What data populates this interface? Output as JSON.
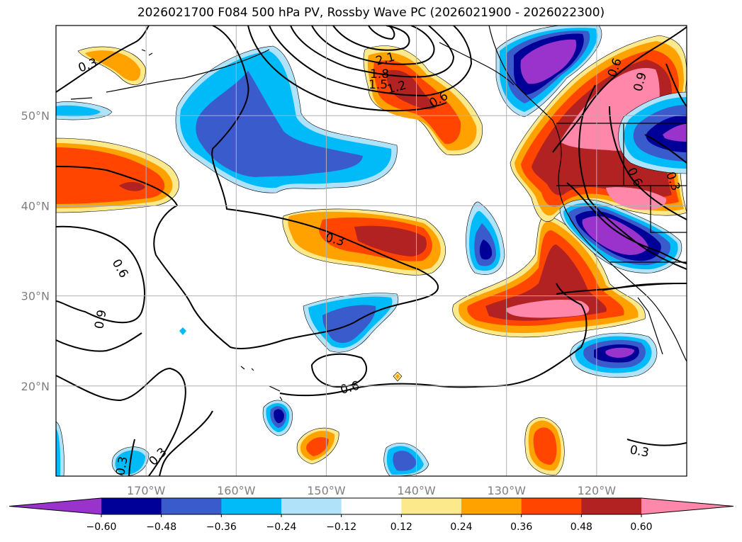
{
  "title": "2026021700 F084 500 hPa PV, Rossby Wave PC (2026021900 - 2026022300)",
  "map": {
    "projection": "PlateCarree",
    "lon_range": [
      -180,
      -110
    ],
    "lat_range": [
      10,
      60
    ],
    "grid": true,
    "lat_ticks": [
      {
        "value": 50,
        "label": "50°N"
      },
      {
        "value": 40,
        "label": "40°N"
      },
      {
        "value": 30,
        "label": "30°N"
      },
      {
        "value": 20,
        "label": "20°N"
      }
    ],
    "lon_ticks": [
      {
        "value": -170,
        "label": "170°W"
      },
      {
        "value": -160,
        "label": "160°W"
      },
      {
        "value": -150,
        "label": "150°W"
      },
      {
        "value": -140,
        "label": "140°W"
      },
      {
        "value": -130,
        "label": "130°W"
      },
      {
        "value": -120,
        "label": "120°W"
      }
    ],
    "contour_labels": [
      "0.3",
      "0.6",
      "0.9",
      "1.2",
      "1.5",
      "1.8",
      "2.1"
    ]
  },
  "colorbar": {
    "levels": [
      -0.6,
      -0.48,
      -0.36,
      -0.24,
      -0.12,
      0.12,
      0.24,
      0.36,
      0.48,
      0.6
    ],
    "tick_labels": [
      "−0.60",
      "−0.48",
      "−0.36",
      "−0.24",
      "−0.12",
      "0.12",
      "0.24",
      "0.36",
      "0.48",
      "0.60"
    ],
    "colors": {
      "lt_-0.60": "#9933cc",
      "-0.60_-0.48": "#000099",
      "-0.48_-0.36": "#3a5bcc",
      "-0.36_-0.24": "#00bbf8",
      "-0.24_-0.12": "#b0e2fa",
      "-0.12_0.12": "#ffffff",
      "0.12_0.24": "#fce98c",
      "0.24_0.36": "#ffa200",
      "0.36_0.48": "#ff4500",
      "0.48_0.60": "#b22222",
      "gt_0.60": "#ff88aa"
    }
  }
}
